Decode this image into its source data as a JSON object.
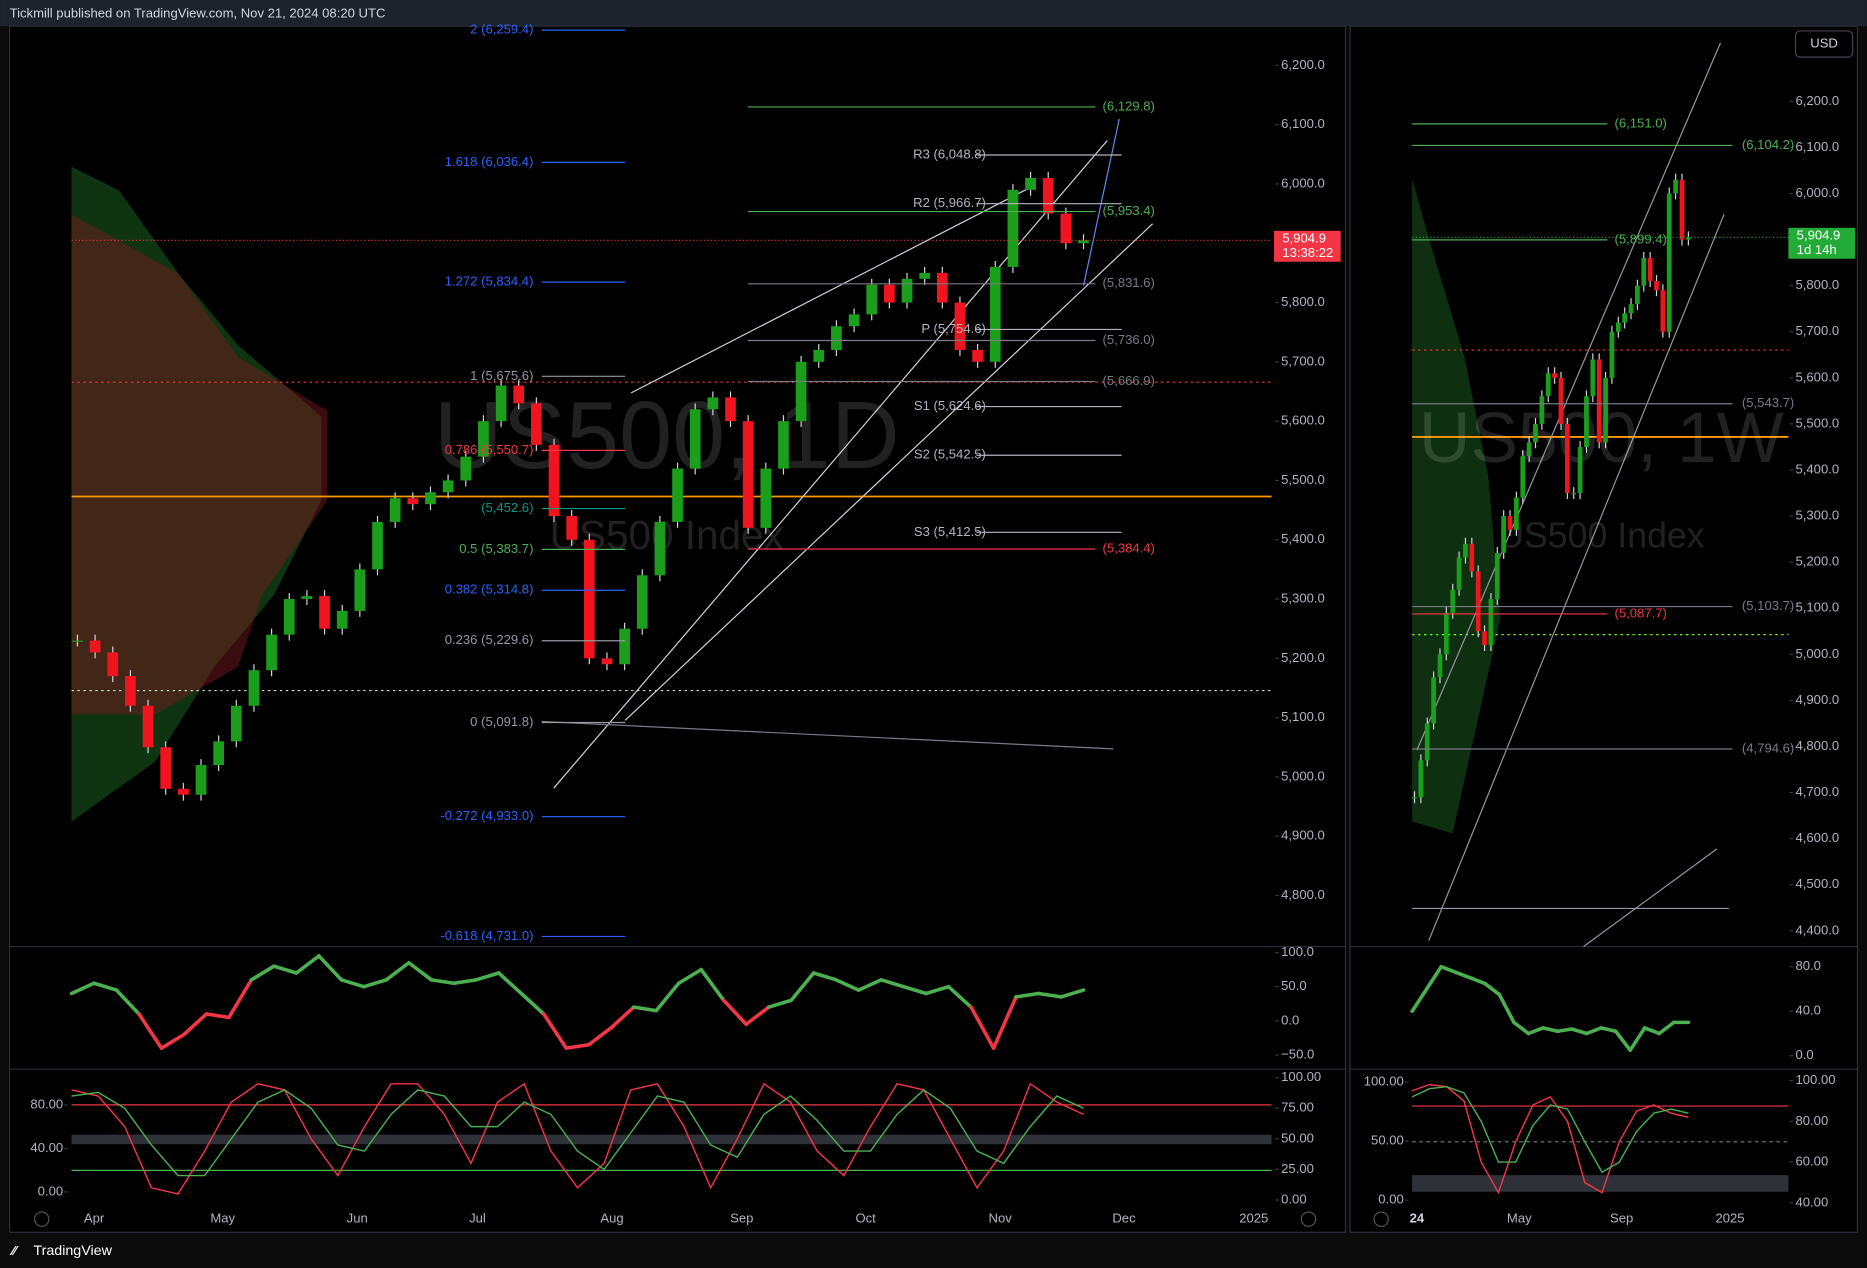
{
  "header": "Tickmill published on TradingView.com, Nov 21, 2024 08:20 UTC",
  "footer": "TradingView",
  "currency": "USD",
  "daily": {
    "watermark": "US500, 1D",
    "subtitle": "US500 Index",
    "ylim": [
      4714,
      6266
    ],
    "yticks": [
      {
        "value": 6200,
        "label": "6,200.0"
      },
      {
        "value": 6100,
        "label": "6,100.0"
      },
      {
        "value": 6000,
        "label": "6,000.0"
      },
      {
        "value": 5900,
        "label": "5,900.0"
      },
      {
        "value": 5800,
        "label": "5,800.0"
      },
      {
        "value": 5700,
        "label": "5,700.0"
      },
      {
        "value": 5600,
        "label": "5,600.0"
      },
      {
        "value": 5500,
        "label": "5,500.0"
      },
      {
        "value": 5400,
        "label": "5,400.0"
      },
      {
        "value": 5300,
        "label": "5,300.0"
      },
      {
        "value": 5200,
        "label": "5,200.0"
      },
      {
        "value": 5100,
        "label": "5,100.0"
      },
      {
        "value": 5000,
        "label": "5,000.0"
      },
      {
        "value": 4900,
        "label": "4,900.0"
      },
      {
        "value": 4800,
        "label": "4,800.0"
      }
    ],
    "price": {
      "value": 5904.9,
      "label": "5,904.9",
      "countdown": "13:38:22",
      "color": "#f23645"
    },
    "closes": [
      5230,
      5210,
      5170,
      5120,
      5050,
      4980,
      4970,
      5020,
      5060,
      5120,
      5180,
      5240,
      5300,
      5305,
      5250,
      5280,
      5350,
      5430,
      5470,
      5460,
      5480,
      5500,
      5540,
      5600,
      5660,
      5630,
      5560,
      5440,
      5400,
      5200,
      5190,
      5250,
      5340,
      5430,
      5520,
      5620,
      5640,
      5600,
      5420,
      5520,
      5600,
      5700,
      5720,
      5760,
      5780,
      5830,
      5800,
      5840,
      5850,
      5800,
      5720,
      5700,
      5860,
      5990,
      6010,
      5950,
      5900,
      5905
    ],
    "fib": [
      {
        "label": "2 (6,259.4)",
        "value": 6259.4,
        "color": "#2962ff"
      },
      {
        "label": "1.618 (6,036.4)",
        "value": 6036.4,
        "color": "#2962ff"
      },
      {
        "label": "1.272 (5,834.4)",
        "value": 5834.4,
        "color": "#2962ff"
      },
      {
        "label": "1 (5,675.6)",
        "value": 5675.6,
        "color": "#9598a1"
      },
      {
        "label": "0.786 (5,550.7)",
        "value": 5550.7,
        "color": "#f23645"
      },
      {
        "label": "(5,452.6)",
        "value": 5452.6,
        "color": "#089981"
      },
      {
        "label": "0.5 (5,383.7)",
        "value": 5383.7,
        "color": "#4caf50"
      },
      {
        "label": "0.382 (5,314.8)",
        "value": 5314.8,
        "color": "#2962ff"
      },
      {
        "label": "0.236 (5,229.6)",
        "value": 5229.6,
        "color": "#9598a1"
      },
      {
        "label": "0 (5,091.8)",
        "value": 5091.8,
        "color": "#9598a1"
      },
      {
        "label": "-0.272 (4,933.0)",
        "value": 4933.0,
        "color": "#2962ff"
      },
      {
        "label": "-0.618 (4,731.0)",
        "value": 4731.0,
        "color": "#2962ff"
      }
    ],
    "pivots": [
      {
        "label": "R3 (6,048.8)",
        "value": 6048.8
      },
      {
        "label": "R2 (5,966.7)",
        "value": 5966.7
      },
      {
        "label": "P (5,754.6)",
        "value": 5754.6
      },
      {
        "label": "S1 (5,624.6)",
        "value": 5624.6
      },
      {
        "label": "S2 (5,542.5)",
        "value": 5542.5
      },
      {
        "label": "S3 (5,412.5)",
        "value": 5412.5
      }
    ],
    "targets": [
      {
        "label": "(6,129.8)",
        "value": 6129.8,
        "color": "#4caf50"
      },
      {
        "label": "(5,953.4)",
        "value": 5953.4,
        "color": "#4caf50"
      },
      {
        "label": "(5,831.6)",
        "value": 5831.6,
        "color": "#787b86"
      },
      {
        "label": "(5,736.0)",
        "value": 5736.0,
        "color": "#787b86"
      },
      {
        "label": "(5,666.9)",
        "value": 5666.9,
        "color": "#787b86"
      },
      {
        "label": "(5,384.4)",
        "value": 5384.4,
        "color": "#f23645"
      }
    ],
    "xlabels": [
      "Apr",
      "May",
      "Jun",
      "Jul",
      "Aug",
      "Sep",
      "Oct",
      "Nov",
      "Dec",
      "2025"
    ],
    "osc": {
      "ylim": [
        -69,
        107
      ],
      "yticks": [
        {
          "value": 100,
          "label": "100.0"
        },
        {
          "value": 50,
          "label": "50.0"
        },
        {
          "value": 0,
          "label": "0.0"
        },
        {
          "value": -50,
          "label": "−50.0"
        }
      ],
      "values": [
        40,
        55,
        45,
        10,
        -40,
        -20,
        10,
        5,
        60,
        80,
        70,
        95,
        60,
        50,
        60,
        85,
        60,
        55,
        60,
        70,
        40,
        10,
        -40,
        -35,
        -10,
        20,
        15,
        55,
        75,
        30,
        -5,
        20,
        30,
        70,
        60,
        45,
        60,
        50,
        40,
        50,
        20,
        -40,
        35,
        40,
        35,
        45
      ]
    },
    "stoch": {
      "ylim": [
        -4,
        106
      ],
      "yticks": [
        {
          "value": 100,
          "label": "100.00"
        },
        {
          "value": 75,
          "label": "75.00"
        },
        {
          "value": 50,
          "label": "50.00"
        },
        {
          "value": 25,
          "label": "25.00"
        },
        {
          "value": 0,
          "label": "0.00"
        }
      ],
      "ylim_left": [
        -12,
        112
      ],
      "yticks_left": [
        {
          "value": 80,
          "label": "80.00"
        },
        {
          "value": 40,
          "label": "40.00"
        },
        {
          "value": 0,
          "label": "0.00"
        }
      ],
      "series": [
        {
          "color": "#f23645",
          "values": [
            90,
            85,
            60,
            10,
            5,
            40,
            80,
            95,
            90,
            50,
            20,
            60,
            95,
            95,
            70,
            30,
            80,
            95,
            40,
            10,
            30,
            90,
            95,
            60,
            10,
            50,
            95,
            80,
            40,
            20,
            60,
            95,
            90,
            50,
            10,
            40,
            95,
            80,
            70
          ]
        },
        {
          "color": "#4caf50",
          "values": [
            85,
            88,
            75,
            45,
            20,
            20,
            50,
            80,
            90,
            75,
            45,
            40,
            70,
            90,
            85,
            60,
            60,
            80,
            70,
            40,
            25,
            55,
            85,
            80,
            45,
            35,
            70,
            85,
            65,
            40,
            40,
            70,
            90,
            75,
            40,
            30,
            60,
            85,
            75
          ]
        }
      ]
    }
  },
  "weekly": {
    "watermark": "US500, 1W",
    "subtitle": "US500 Index",
    "ylim": [
      4366,
      6363
    ],
    "yticks": [
      {
        "value": 6200,
        "label": "6,200.0"
      },
      {
        "value": 6100,
        "label": "6,100.0"
      },
      {
        "value": 6000,
        "label": "6,000.0"
      },
      {
        "value": 5900,
        "label": "5,900.0"
      },
      {
        "value": 5800,
        "label": "5,800.0"
      },
      {
        "value": 5700,
        "label": "5,700.0"
      },
      {
        "value": 5600,
        "label": "5,600.0"
      },
      {
        "value": 5500,
        "label": "5,500.0"
      },
      {
        "value": 5400,
        "label": "5,400.0"
      },
      {
        "value": 5300,
        "label": "5,300.0"
      },
      {
        "value": 5200,
        "label": "5,200.0"
      },
      {
        "value": 5100,
        "label": "5,100.0"
      },
      {
        "value": 5000,
        "label": "5,000.0"
      },
      {
        "value": 4900,
        "label": "4,900.0"
      },
      {
        "value": 4800,
        "label": "4,800.0"
      },
      {
        "value": 4700,
        "label": "4,700.0"
      },
      {
        "value": 4600,
        "label": "4,600.0"
      },
      {
        "value": 4500,
        "label": "4,500.0"
      },
      {
        "value": 4400,
        "label": "4,400.0"
      }
    ],
    "price": {
      "value": 5904.9,
      "label": "5,904.9",
      "countdown": "1d 14h",
      "color": "#22ab36"
    },
    "closes": [
      4690,
      4770,
      4850,
      4950,
      5000,
      5090,
      5140,
      5210,
      5240,
      5180,
      5050,
      5020,
      5120,
      5220,
      5300,
      5270,
      5340,
      5430,
      5460,
      5500,
      5560,
      5610,
      5600,
      5500,
      5350,
      5350,
      5450,
      5560,
      5640,
      5460,
      5600,
      5700,
      5720,
      5740,
      5760,
      5800,
      5860,
      5810,
      5790,
      5700,
      6000,
      6030,
      5900,
      5905
    ],
    "levels": [
      {
        "label": "(6,151.0)",
        "value": 6151.0,
        "color": "#4caf50"
      },
      {
        "label": "(5,899.4)",
        "value": 5899.4,
        "color": "#4caf50"
      },
      {
        "label": "(5,087.7)",
        "value": 5087.7,
        "color": "#f23645"
      }
    ],
    "edge_levels": [
      {
        "label": "(6,104.2)",
        "value": 6104.2,
        "color": "#4caf50"
      },
      {
        "label": "(5,543.7)",
        "value": 5543.7,
        "color": "#787b86"
      },
      {
        "label": "(5,103.7)",
        "value": 5103.7,
        "color": "#787b86"
      },
      {
        "label": "(4,794.6)",
        "value": 4794.6,
        "color": "#787b86"
      }
    ],
    "xlabels": [
      "24",
      "May",
      "Sep",
      "2025"
    ],
    "osc": {
      "ylim": [
        -11,
        96
      ],
      "yticks": [
        {
          "value": 80,
          "label": "80.0"
        },
        {
          "value": 40,
          "label": "40.0"
        },
        {
          "value": 0,
          "label": "0.0"
        }
      ],
      "values": [
        40,
        60,
        80,
        75,
        70,
        65,
        55,
        30,
        20,
        25,
        22,
        24,
        20,
        25,
        22,
        5,
        25,
        20,
        30,
        30
      ]
    },
    "stoch": {
      "ylim": [
        39,
        105
      ],
      "yticks": [
        {
          "value": 100,
          "label": "100.00"
        },
        {
          "value": 80,
          "label": "80.00"
        },
        {
          "value": 60,
          "label": "60.00"
        },
        {
          "value": 40,
          "label": "40.00"
        }
      ],
      "ylim_left": [
        -4,
        110
      ],
      "yticks_left": [
        {
          "value": 100,
          "label": "100.00"
        },
        {
          "value": 50,
          "label": "50.00"
        },
        {
          "value": 0,
          "label": "0.00"
        }
      ],
      "series": [
        {
          "color": "#f23645",
          "values": [
            95,
            98,
            97,
            90,
            60,
            45,
            70,
            88,
            92,
            80,
            50,
            45,
            70,
            85,
            88,
            84,
            82
          ]
        },
        {
          "color": "#4caf50",
          "values": [
            92,
            96,
            97,
            94,
            80,
            60,
            60,
            78,
            88,
            86,
            70,
            55,
            60,
            75,
            84,
            86,
            84
          ]
        }
      ]
    }
  }
}
